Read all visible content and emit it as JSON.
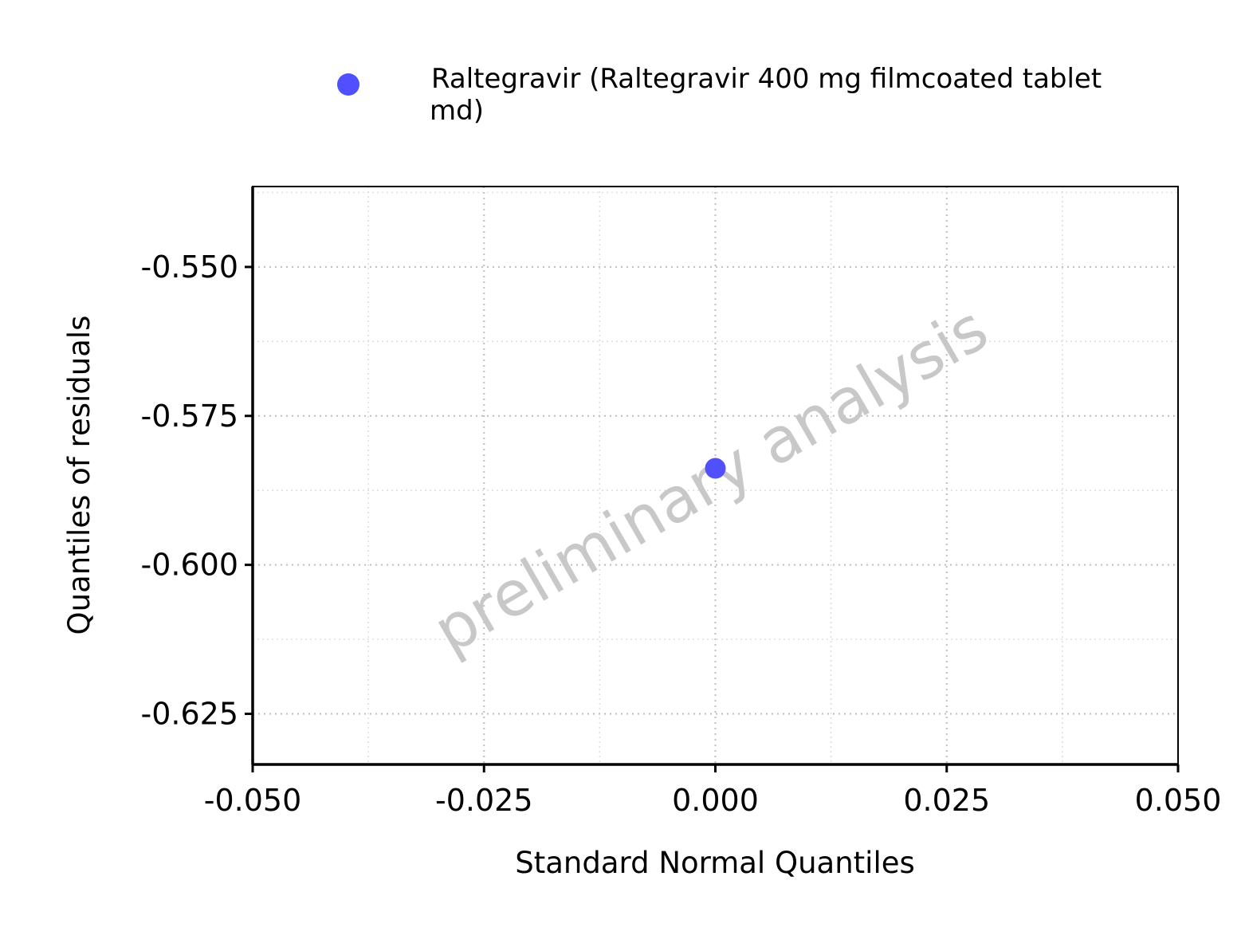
{
  "chart_data": {
    "type": "scatter",
    "title": "",
    "xlabel": "Standard Normal Quantiles",
    "ylabel": "Quantiles of residuals",
    "xlim": [
      -0.05,
      0.05
    ],
    "ylim": [
      -0.6335,
      -0.5365
    ],
    "x_ticks": [
      -0.05,
      -0.025,
      0.0,
      0.025,
      0.05
    ],
    "x_tick_labels": [
      "-0.050",
      "-0.025",
      "0.000",
      "0.025",
      "0.050"
    ],
    "y_ticks": [
      -0.55,
      -0.575,
      -0.6,
      -0.625
    ],
    "y_tick_labels": [
      "-0.550",
      "-0.575",
      "-0.600",
      "-0.625"
    ],
    "grid": true,
    "legend_position": "top",
    "series": [
      {
        "name": "Raltegravir (Raltegravir 400 mg filmcoated tablet md)",
        "legend_lines": [
          "Raltegravir (Raltegravir 400 mg filmcoated tablet",
          "md)"
        ],
        "color": "#5050ff",
        "points": [
          {
            "x": 0.0,
            "y": -0.5838
          }
        ]
      }
    ],
    "watermark": "preliminary analysis"
  }
}
